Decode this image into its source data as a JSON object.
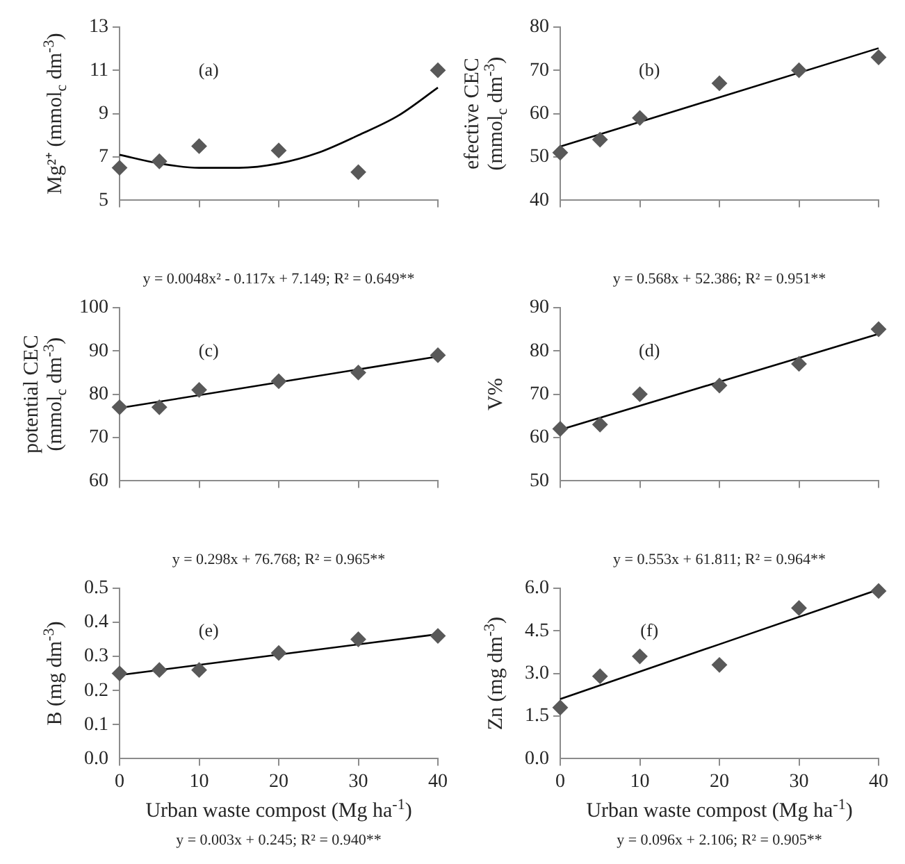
{
  "chart_data": [
    {
      "type": "scatter",
      "ylabel": "Mg²⁺ (mmol$_{c}$ dm$^{-3}$)",
      "annotations": [
        "(a)",
        "y = 0.0048x² - 0.117x + 7.149; R² = 0.649**"
      ],
      "x": [
        0,
        5,
        10,
        20,
        30,
        40
      ],
      "marker": "diamond",
      "grid": false,
      "legend": false,
      "tick_labels": "y",
      "xlim": [
        0,
        40
      ],
      "xticks": [
        {
          "value": 0,
          "label": null
        },
        {
          "value": 10,
          "label": null
        },
        {
          "value": 20,
          "label": null
        },
        {
          "value": 30,
          "label": null
        },
        {
          "value": 40,
          "label": null
        }
      ],
      "ylim": [
        5,
        13
      ],
      "yticks": [
        5,
        7,
        9,
        11,
        13
      ],
      "series": [
        {
          "type": "scatter",
          "color": "#595959",
          "values": [
            6.5,
            6.8,
            7.5,
            7.3,
            6.3,
            11.0
          ]
        },
        {
          "type": "line",
          "marker": "none",
          "color": "#000000",
          "x": [
            0,
            5,
            10,
            15,
            20,
            25,
            30,
            35,
            40
          ],
          "values": [
            7.1,
            6.7,
            6.5,
            6.5,
            6.7,
            7.2,
            8.0,
            8.9,
            10.2
          ]
        }
      ]
    },
    {
      "type": "scatter",
      "ylabel": "efective CEC\n(mmol$_{c}$ dm$^{-3}$)",
      "annotations": [
        "(b)",
        "y = 0.568x + 52.386; R² = 0.951**"
      ],
      "x": [
        0,
        5,
        10,
        20,
        30,
        40
      ],
      "marker": "diamond",
      "grid": false,
      "legend": false,
      "tick_labels": "y",
      "xlim": [
        0,
        40
      ],
      "xticks": [
        {
          "value": 0,
          "label": null
        },
        {
          "value": 10,
          "label": null
        },
        {
          "value": 20,
          "label": null
        },
        {
          "value": 30,
          "label": null
        },
        {
          "value": 40,
          "label": null
        }
      ],
      "ylim": [
        40,
        80
      ],
      "yticks": [
        40,
        50,
        60,
        70,
        80
      ],
      "series": [
        {
          "type": "scatter",
          "color": "#595959",
          "values": [
            51,
            54,
            59,
            67,
            70,
            73
          ]
        },
        {
          "type": "line",
          "marker": "none",
          "color": "#000000",
          "x": [
            0,
            40
          ],
          "values": [
            52.4,
            75.1
          ]
        }
      ]
    },
    {
      "type": "scatter",
      "ylabel": "potential CEC\n(mmol$_{c}$ dm$^{-3}$)",
      "annotations": [
        "(c)",
        "y = 0.298x + 76.768; R² = 0.965**"
      ],
      "x": [
        0,
        5,
        10,
        20,
        30,
        40
      ],
      "marker": "diamond",
      "grid": false,
      "legend": false,
      "tick_labels": "y",
      "xlim": [
        0,
        40
      ],
      "xticks": [
        {
          "value": 0,
          "label": null
        },
        {
          "value": 10,
          "label": null
        },
        {
          "value": 20,
          "label": null
        },
        {
          "value": 30,
          "label": null
        },
        {
          "value": 40,
          "label": null
        }
      ],
      "ylim": [
        60,
        100
      ],
      "yticks": [
        60,
        70,
        80,
        90,
        100
      ],
      "series": [
        {
          "type": "scatter",
          "color": "#595959",
          "values": [
            77,
            77,
            81,
            83,
            85,
            89
          ]
        },
        {
          "type": "line",
          "marker": "none",
          "color": "#000000",
          "x": [
            0,
            40
          ],
          "values": [
            76.8,
            88.7
          ]
        }
      ]
    },
    {
      "type": "scatter",
      "ylabel": "V%",
      "annotations": [
        "(d)",
        "y = 0.553x + 61.811; R² = 0.964**"
      ],
      "x": [
        0,
        5,
        10,
        20,
        30,
        40
      ],
      "marker": "diamond",
      "grid": false,
      "legend": false,
      "tick_labels": "y",
      "xlim": [
        0,
        40
      ],
      "xticks": [
        {
          "value": 0,
          "label": null
        },
        {
          "value": 10,
          "label": null
        },
        {
          "value": 20,
          "label": null
        },
        {
          "value": 30,
          "label": null
        },
        {
          "value": 40,
          "label": null
        }
      ],
      "ylim": [
        50,
        90
      ],
      "yticks": [
        50,
        60,
        70,
        80,
        90
      ],
      "series": [
        {
          "type": "scatter",
          "color": "#595959",
          "values": [
            62,
            63,
            70,
            72,
            77,
            85
          ]
        },
        {
          "type": "line",
          "marker": "none",
          "color": "#000000",
          "x": [
            0,
            40
          ],
          "values": [
            61.8,
            83.9
          ]
        }
      ]
    },
    {
      "type": "scatter",
      "xlabel": "Urban waste compost (Mg ha$^{-1}$)",
      "ylabel": "B (mg dm$^{-3}$)",
      "annotations": [
        "(e)",
        "y = 0.003x + 0.245; R² = 0.940**"
      ],
      "x": [
        0,
        5,
        10,
        20,
        30,
        40
      ],
      "marker": "diamond",
      "grid": false,
      "legend": false,
      "xlim": [
        0,
        40
      ],
      "xticks": [
        0,
        10,
        20,
        30,
        40
      ],
      "ylim": [
        0,
        0.5
      ],
      "yticks": [
        {
          "value": 0,
          "label": "0.0"
        },
        0.1,
        0.2,
        0.3,
        0.4,
        0.5
      ],
      "series": [
        {
          "type": "scatter",
          "color": "#595959",
          "values": [
            0.25,
            0.26,
            0.26,
            0.31,
            0.35,
            0.36
          ]
        },
        {
          "type": "line",
          "marker": "none",
          "color": "#000000",
          "x": [
            0,
            40
          ],
          "values": [
            0.245,
            0.365
          ]
        }
      ]
    },
    {
      "type": "scatter",
      "xlabel": "Urban waste compost (Mg ha$^{-1}$)",
      "ylabel": "Zn (mg dm$^{-3}$)",
      "annotations": [
        "(f)",
        "y = 0.096x + 2.106; R² = 0.905**"
      ],
      "x": [
        0,
        5,
        10,
        20,
        30,
        40
      ],
      "marker": "diamond",
      "grid": false,
      "legend": false,
      "xlim": [
        0,
        40
      ],
      "xticks": [
        0,
        10,
        20,
        30,
        40
      ],
      "ylim": [
        0,
        6
      ],
      "yticks": [
        {
          "value": 0,
          "label": "0.0"
        },
        {
          "value": 1.5,
          "label": "1.5"
        },
        {
          "value": 3,
          "label": "3.0"
        },
        {
          "value": 4.5,
          "label": "4.5"
        },
        {
          "value": 6,
          "label": "6.0"
        }
      ],
      "series": [
        {
          "type": "scatter",
          "color": "#595959",
          "values": [
            1.8,
            2.9,
            3.6,
            3.3,
            5.3,
            5.9
          ]
        },
        {
          "type": "line",
          "marker": "none",
          "color": "#000000",
          "x": [
            0,
            40
          ],
          "values": [
            2.1,
            5.95
          ]
        }
      ]
    }
  ]
}
